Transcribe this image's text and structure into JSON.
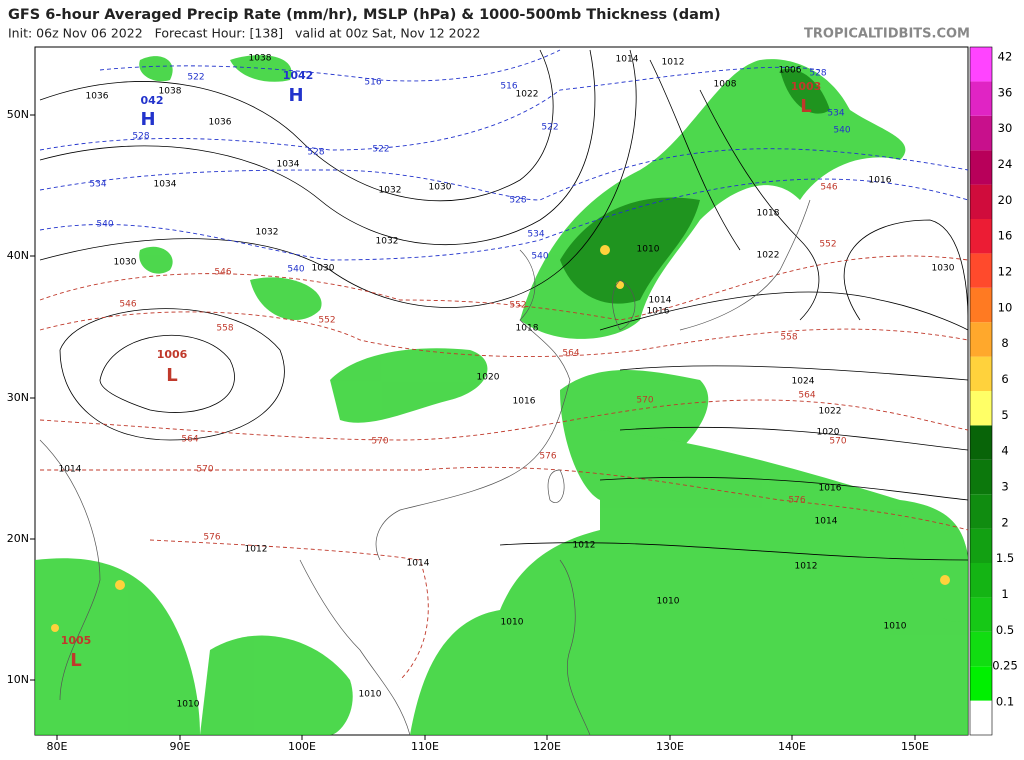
{
  "header": {
    "title": "GFS 6-hour Averaged Precip Rate (mm/hr), MSLP (hPa) & 1000-500mb Thickness (dam)",
    "init": "Init: 06z Nov 06 2022   Forecast Hour: [138]   valid at 00z Sat, Nov 12 2022",
    "site": "TROPICALTIDBITS.COM"
  },
  "map": {
    "lat_labels": [
      "50N",
      "40N",
      "30N",
      "20N",
      "10N"
    ],
    "lon_labels": [
      "80E",
      "90E",
      "100E",
      "110E",
      "120E",
      "130E",
      "140E",
      "150E"
    ],
    "centers": [
      {
        "letter": "H",
        "pressure": "042"
      },
      {
        "letter": "H",
        "pressure": "1042"
      },
      {
        "letter": "L",
        "pressure": "1006"
      },
      {
        "letter": "L",
        "pressure": "1003"
      },
      {
        "letter": "L",
        "pressure": "1005"
      }
    ],
    "isobar_labels": [
      "1036",
      "1038",
      "1038",
      "1036",
      "1034",
      "1034",
      "1032",
      "1030",
      "1032",
      "1032",
      "1030",
      "1030",
      "1022",
      "1014",
      "1012",
      "1008",
      "1006",
      "1030",
      "1024",
      "1022",
      "1020",
      "1016",
      "1014",
      "1012",
      "1012",
      "1010",
      "1010",
      "1014",
      "1012",
      "1010",
      "1016",
      "1020",
      "1014",
      "1010",
      "1010",
      "1018",
      "1016",
      "1014",
      "1010",
      "1018",
      "1022",
      "1016"
    ],
    "thickness_labels": [
      "546",
      "552",
      "558",
      "564",
      "570",
      "576",
      "546",
      "552",
      "564",
      "570",
      "576",
      "570",
      "564",
      "570",
      "576",
      "552",
      "546",
      "558"
    ],
    "cold_thickness_labels": [
      "522",
      "516",
      "516",
      "522",
      "522",
      "528",
      "534",
      "540",
      "528",
      "534",
      "540",
      "540",
      "528",
      "534",
      "540",
      "528"
    ]
  },
  "colorbar": {
    "labels": [
      "0.1",
      "0.25",
      "0.5",
      "1",
      "1.5",
      "2",
      "3",
      "4",
      "5",
      "6",
      "8",
      "10",
      "12",
      "16",
      "20",
      "24",
      "30",
      "36",
      "42"
    ],
    "colors": [
      "#ffffff",
      "#00f000",
      "#11dd11",
      "#16c816",
      "#14b414",
      "#12a012",
      "#108c10",
      "#0c780c",
      "#086408",
      "#ffff66",
      "#ffd23c",
      "#ffa82c",
      "#ff7a22",
      "#ff4a2c",
      "#ec1c34",
      "#d00c3c",
      "#b8005a",
      "#c8108c",
      "#e024c4",
      "#ff44ff"
    ]
  }
}
